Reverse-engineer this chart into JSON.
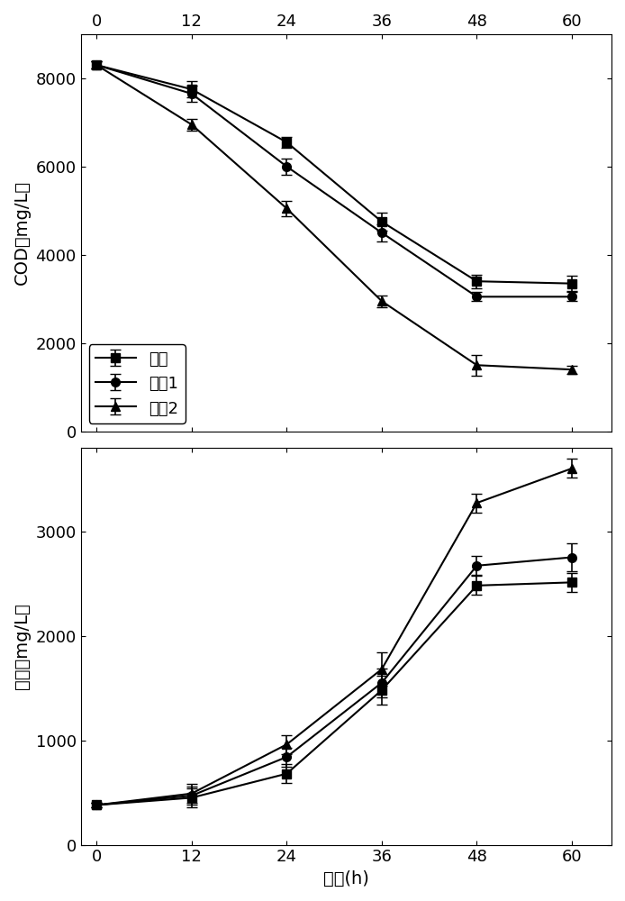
{
  "x": [
    0,
    12,
    24,
    36,
    48,
    60
  ],
  "cod_dan": [
    8300,
    7750,
    6550,
    4750,
    3400,
    3350
  ],
  "cod_hun1": [
    8300,
    7650,
    6000,
    4500,
    3050,
    3050
  ],
  "cod_hun2": [
    8300,
    6950,
    5050,
    2950,
    1500,
    1400
  ],
  "cod_dan_err": [
    80,
    180,
    130,
    200,
    150,
    180
  ],
  "cod_hun1_err": [
    80,
    180,
    180,
    200,
    100,
    100
  ],
  "cod_hun2_err": [
    80,
    130,
    180,
    130,
    230,
    90
  ],
  "dw_dan": [
    380,
    450,
    680,
    1480,
    2480,
    2510
  ],
  "dw_hun1": [
    380,
    470,
    840,
    1550,
    2670,
    2750
  ],
  "dw_hun2": [
    380,
    490,
    960,
    1680,
    3270,
    3600
  ],
  "dw_dan_err": [
    25,
    90,
    90,
    140,
    90,
    90
  ],
  "dw_hun1_err": [
    25,
    90,
    90,
    140,
    90,
    130
  ],
  "dw_hun2_err": [
    25,
    90,
    90,
    160,
    90,
    90
  ],
  "cod_ylim": [
    0,
    9000
  ],
  "cod_yticks": [
    0,
    2000,
    4000,
    6000,
    8000
  ],
  "dw_ylim": [
    0,
    3800
  ],
  "dw_yticks": [
    0,
    1000,
    2000,
    3000
  ],
  "xlabel": "时间(h)",
  "cod_ylabel": "COD（mg/L）",
  "dw_ylabel": "干重（mg/L）",
  "legend_labels": [
    "单菌",
    "混菌1",
    "混菌2"
  ],
  "line_color": "#000000",
  "marker_square": "s",
  "marker_circle": "o",
  "marker_triangle": "^",
  "markersize": 7,
  "linewidth": 1.5,
  "capsize": 4,
  "elinewidth": 1.2,
  "xticks": [
    0,
    12,
    24,
    36,
    48,
    60
  ],
  "tick_fontsize": 13,
  "label_fontsize": 14,
  "legend_fontsize": 13
}
